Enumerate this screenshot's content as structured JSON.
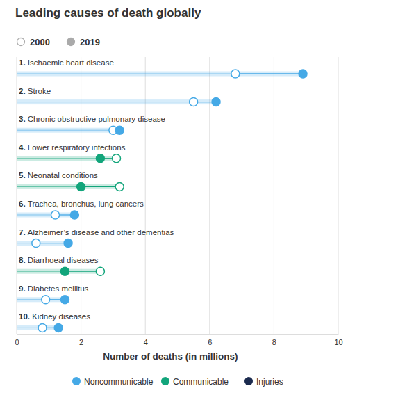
{
  "chart_data": {
    "type": "dumbbell",
    "title": "Leading causes of death globally",
    "x_label": "Number of deaths (in millions)",
    "orientation": "horizontal",
    "grid": true,
    "categories": [
      "1. Ischaemic heart disease",
      "2. Stroke",
      "3. Chronic obstructive pulmonary disease",
      "4. Lower respiratory infections",
      "5. Neonatal conditions",
      "6. Trachea, bronchus, lung cancers",
      "7. Alzheimer’s disease and other dementias",
      "8. Diarrhoeal diseases",
      "9. Diabetes mellitus",
      "10. Kidney diseases"
    ],
    "colors": [
      "#45a9e6",
      "#45a9e6",
      "#45a9e6",
      "#12a57b",
      "#12a57b",
      "#45a9e6",
      "#45a9e6",
      "#12a57b",
      "#45a9e6",
      "#45a9e6"
    ],
    "series": [
      {
        "name": "2000",
        "marker": "open",
        "color": "#aaaaaa",
        "values": [
          6.8,
          5.5,
          3.0,
          3.1,
          3.2,
          1.2,
          0.6,
          2.6,
          0.9,
          0.8
        ]
      },
      {
        "name": "2019",
        "marker": "filled",
        "color": "#aaaaaa",
        "values": [
          8.9,
          6.2,
          3.2,
          2.6,
          2.0,
          1.8,
          1.6,
          1.5,
          1.5,
          1.3
        ]
      }
    ],
    "groups": [
      {
        "name": "Noncommunicable",
        "color": "#45a9e6"
      },
      {
        "name": "Communicable",
        "color": "#12a57b"
      },
      {
        "name": "Injuries",
        "color": "#1b2a4e"
      }
    ],
    "xlim": [
      0,
      10
    ],
    "xticks": [
      0,
      2,
      4,
      6,
      8,
      10
    ]
  }
}
